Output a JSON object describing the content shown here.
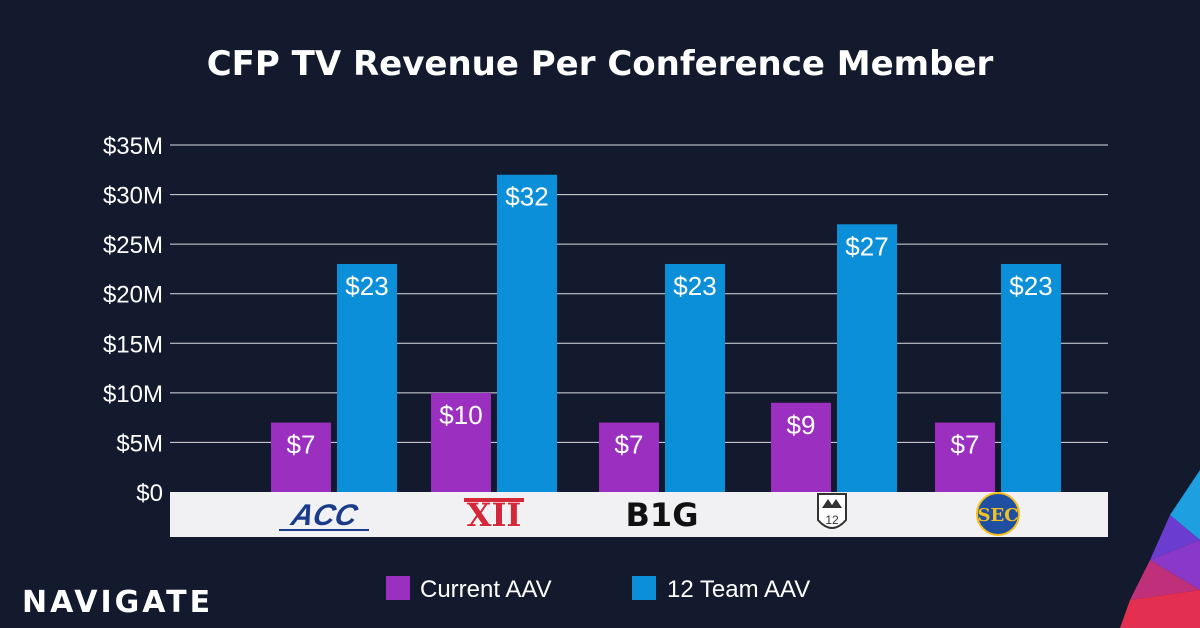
{
  "chart_data": {
    "type": "bar",
    "title": "CFP TV Revenue Per Conference Member",
    "categories": [
      "ACC",
      "Big 12",
      "Big Ten",
      "Pac-12",
      "SEC"
    ],
    "series": [
      {
        "name": "Current AAV",
        "values": [
          7,
          10,
          7,
          9,
          7
        ],
        "labels": [
          "$7",
          "$10",
          "$7",
          "$9",
          "$7"
        ]
      },
      {
        "name": "12 Team AAV",
        "values": [
          23,
          32,
          23,
          27,
          23
        ],
        "labels": [
          "$23",
          "$32",
          "$23",
          "$27",
          "$23"
        ]
      }
    ],
    "ylim": [
      0,
      35
    ],
    "yticks": [
      0,
      5,
      10,
      15,
      20,
      25,
      30,
      35
    ],
    "ytick_labels": [
      "$0",
      "$5M",
      "$10M",
      "$15M",
      "$20M",
      "$25M",
      "$30M",
      "$35M"
    ],
    "xlabel": "",
    "ylabel": "",
    "grid": true,
    "legend_position": "bottom"
  },
  "category_logos": [
    {
      "name": "acc-logo",
      "text": "ACC"
    },
    {
      "name": "big12-logo",
      "text": "XII"
    },
    {
      "name": "big-ten-logo",
      "text": "B1G"
    },
    {
      "name": "pac12-logo",
      "text": "12"
    },
    {
      "name": "sec-logo",
      "text": "SEC"
    }
  ],
  "colors": {
    "background": "#131a2e",
    "current": "#9b2fc0",
    "team12": "#0b8fd8",
    "grid": "#ffffff",
    "text": "#ffffff",
    "logo_band": "#f1f1f3",
    "acc": "#1a3a8a",
    "big12": "#d3283a",
    "bigten": "#111111",
    "sec": "#1f4fa0",
    "sec_fill": "#f4c020"
  },
  "brand": {
    "name": "NAVIGATE"
  }
}
